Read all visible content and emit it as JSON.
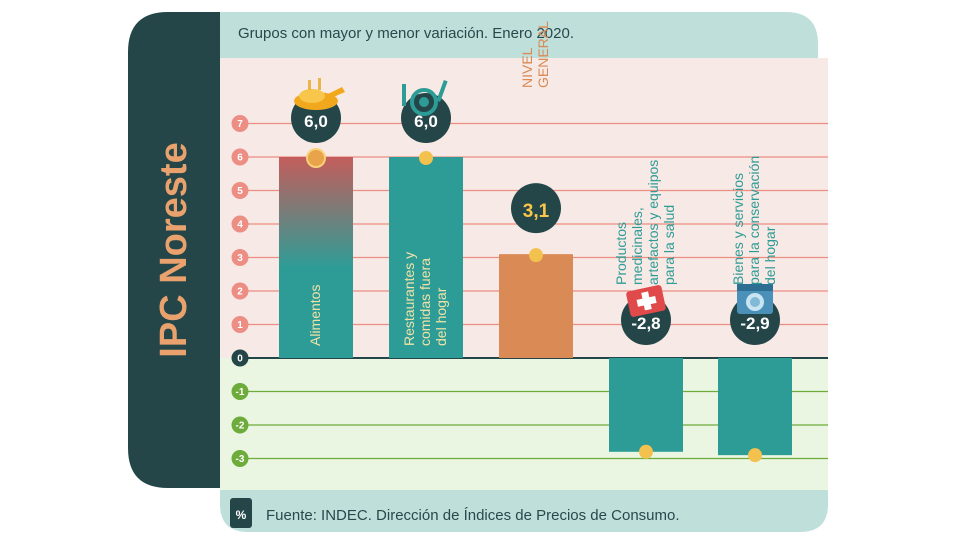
{
  "side_title": "IPC Noreste",
  "header": {
    "title": "Grupos con mayor y menor variación. Enero 2020."
  },
  "footer": {
    "unit": "%",
    "source": "Fuente: INDEC. Dirección de Índices de Precios de Consumo."
  },
  "colors": {
    "teal": "#2e9c96",
    "orange": "#d98a55",
    "dark": "#244648",
    "salmon": "#ec8e84",
    "green": "#6dab3b",
    "header_bg": "#bfdfda",
    "positive_bg": "#f7e9e5",
    "negative_bg": "#ebf6e2",
    "marker": "#f2c14e"
  },
  "chart_data": {
    "type": "bar",
    "title": "Grupos con mayor y menor variación. Enero 2020.",
    "ylabel": "%",
    "ylim": [
      -3,
      7
    ],
    "y_ticks": [
      "7",
      "6",
      "5",
      "4",
      "3",
      "2",
      "1",
      "0",
      "-1",
      "-2",
      "-3"
    ],
    "categories": [
      {
        "label_lines": [
          "Alimentos"
        ],
        "value": 6.0,
        "value_label": "6,0",
        "icon": "food-icon",
        "color": "gradient"
      },
      {
        "label_lines": [
          "Restaurantes y",
          "comidas fuera",
          "del hogar"
        ],
        "value": 6.0,
        "value_label": "6,0",
        "icon": "restaurant-icon",
        "color": "teal"
      },
      {
        "label_lines": [
          "NIVEL",
          "GENERAL"
        ],
        "value": 3.1,
        "value_label": "3,1",
        "icon": "",
        "color": "orange"
      },
      {
        "label_lines": [
          "Productos",
          "medicinales,",
          "artefactos y equipos",
          "para la salud"
        ],
        "value": -2.8,
        "value_label": "-2,8",
        "icon": "health-icon",
        "color": "teal"
      },
      {
        "label_lines": [
          "Bienes y servicios",
          "para la conservación",
          "del hogar"
        ],
        "value": -2.9,
        "value_label": "-2,9",
        "icon": "washing-machine-icon",
        "color": "teal"
      }
    ]
  }
}
